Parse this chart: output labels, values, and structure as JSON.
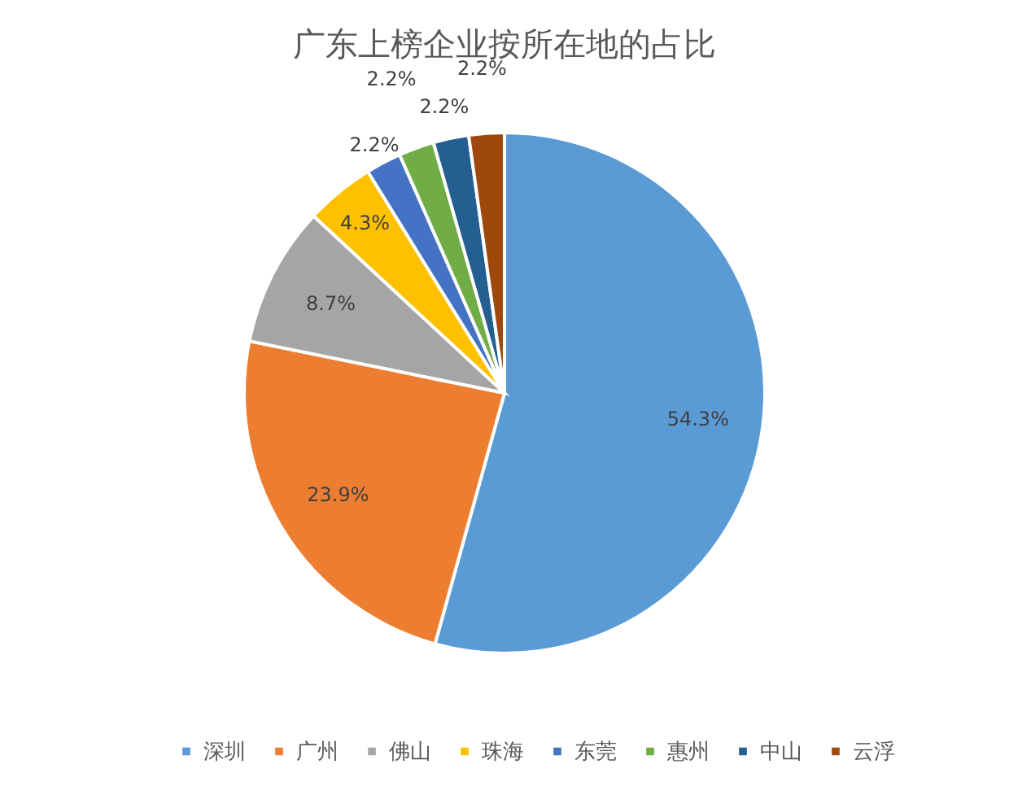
{
  "chart_data": {
    "type": "pie",
    "title": "广东上榜企业按所在地的占比",
    "categories": [
      "深圳",
      "广州",
      "佛山",
      "珠海",
      "东莞",
      "惠州",
      "中山",
      "云浮"
    ],
    "values": [
      54.3,
      23.9,
      8.7,
      4.3,
      2.2,
      2.2,
      2.2,
      2.2
    ],
    "value_labels": [
      "54.3%",
      "23.9%",
      "8.7%",
      "4.3%",
      "2.2%",
      "2.2%",
      "2.2%",
      "2.2%"
    ],
    "colors": [
      "#5b9bd5",
      "#ed7d31",
      "#a5a5a5",
      "#ffc000",
      "#4472c4",
      "#70ad47",
      "#255e91",
      "#9e480e"
    ],
    "legend": "bottom"
  }
}
